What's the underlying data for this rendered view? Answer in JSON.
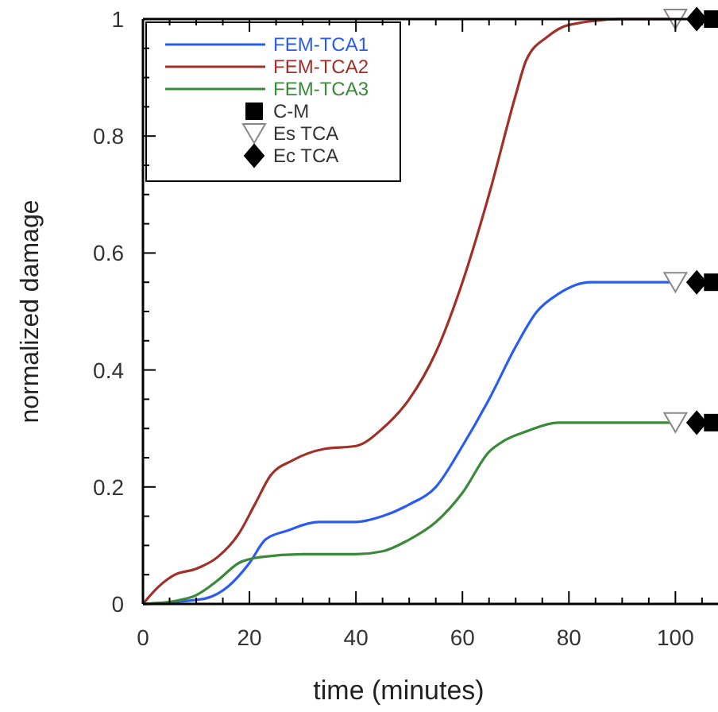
{
  "chart_data": {
    "type": "line",
    "xlabel": "time (minutes)",
    "ylabel": "normalized damage",
    "xlim": [
      0,
      108
    ],
    "xticks": [
      0,
      {
        "value": 5,
        "label": null
      },
      20,
      {
        "value": 10,
        "label": null
      },
      {
        "value": 15,
        "label": null
      },
      {
        "value": 25,
        "label": null
      },
      {
        "value": 30,
        "label": null
      },
      {
        "value": 35,
        "label": null
      },
      40,
      {
        "value": 45,
        "label": null
      },
      {
        "value": 50,
        "label": null
      },
      {
        "value": 55,
        "label": null
      },
      60,
      {
        "value": 65,
        "label": null
      },
      {
        "value": 70,
        "label": null
      },
      {
        "value": 75,
        "label": null
      },
      80,
      {
        "value": 85,
        "label": null
      },
      {
        "value": 90,
        "label": null
      },
      {
        "value": 95,
        "label": null
      },
      100,
      {
        "value": 105,
        "label": null
      }
    ],
    "ylim": [
      0,
      1
    ],
    "yticks": [
      0,
      {
        "value": 0.05,
        "label": null
      },
      {
        "value": 0.1,
        "label": null
      },
      {
        "value": 0.15,
        "label": null
      },
      0.2,
      {
        "value": 0.25,
        "label": null
      },
      {
        "value": 0.3,
        "label": null
      },
      {
        "value": 0.35,
        "label": null
      },
      0.4,
      {
        "value": 0.45,
        "label": null
      },
      {
        "value": 0.5,
        "label": null
      },
      {
        "value": 0.55,
        "label": null
      },
      0.6,
      {
        "value": 0.65,
        "label": null
      },
      {
        "value": 0.7,
        "label": null
      },
      {
        "value": 0.75,
        "label": null
      },
      0.8,
      {
        "value": 0.85,
        "label": null
      },
      {
        "value": 0.9,
        "label": null
      },
      {
        "value": 0.95,
        "label": null
      },
      1
    ],
    "legend": "top left",
    "grid": false,
    "series": [
      {
        "name": "FEM-TCA1",
        "color": "#2a5cf0",
        "x": [
          0,
          8,
          12,
          16,
          20,
          23,
          27,
          33,
          40,
          45,
          50,
          55,
          60,
          65,
          70,
          74,
          78,
          84,
          100
        ],
        "values": [
          0,
          0.005,
          0.01,
          0.03,
          0.07,
          0.11,
          0.125,
          0.14,
          0.14,
          0.15,
          0.17,
          0.2,
          0.27,
          0.35,
          0.44,
          0.5,
          0.53,
          0.55,
          0.55
        ]
      },
      {
        "name": "FEM-TCA2",
        "color": "#a03028",
        "x": [
          0,
          3,
          6,
          10,
          14,
          18,
          21,
          24,
          28,
          34,
          40,
          45,
          50,
          55,
          60,
          65,
          70,
          72,
          76,
          80,
          90,
          100
        ],
        "values": [
          0,
          0.03,
          0.05,
          0.06,
          0.08,
          0.12,
          0.17,
          0.22,
          0.245,
          0.265,
          0.27,
          0.3,
          0.35,
          0.43,
          0.55,
          0.7,
          0.87,
          0.93,
          0.97,
          0.99,
          1,
          1
        ]
      },
      {
        "name": "FEM-TCA3",
        "color": "#3a8a3a",
        "x": [
          0,
          6,
          10,
          14,
          18,
          22,
          30,
          40,
          45,
          50,
          55,
          60,
          65,
          68,
          72,
          78,
          100
        ],
        "values": [
          0,
          0.005,
          0.015,
          0.04,
          0.07,
          0.08,
          0.085,
          0.085,
          0.09,
          0.11,
          0.14,
          0.19,
          0.26,
          0.28,
          0.295,
          0.31,
          0.31
        ]
      },
      {
        "name": "C-M",
        "color": "#000000",
        "type": "scatter",
        "marker": "square",
        "x": [
          107,
          107,
          107
        ],
        "values": [
          1,
          0.55,
          0.31
        ]
      },
      {
        "name": "Es TCA",
        "color": "#ffffff",
        "type": "scatter",
        "marker": "triangle",
        "x": [
          100,
          100,
          100
        ],
        "values": [
          1,
          0.55,
          0.31
        ]
      },
      {
        "name": "Ec TCA",
        "color": "#000000",
        "type": "scatter",
        "marker": "diamond",
        "x": [
          104,
          104,
          104
        ],
        "values": [
          1,
          0.55,
          0.31
        ]
      }
    ]
  }
}
